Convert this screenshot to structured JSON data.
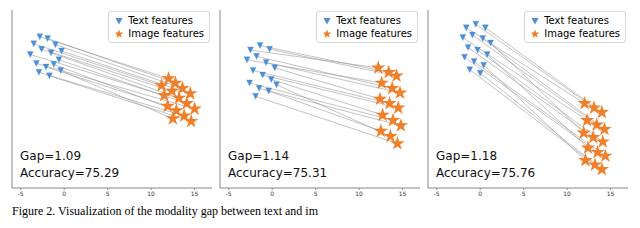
{
  "caption": "Figure 2. Visualization of the modality gap between text and im",
  "chart_data": [
    {
      "type": "scatter",
      "legend": "upper right",
      "annotations": [
        "Gap=1.09",
        "Accuracy=75.29"
      ],
      "xlim": [
        -6,
        17
      ],
      "xticks": [
        -5,
        0,
        5,
        10,
        15
      ],
      "ylim": [
        -10,
        10
      ],
      "tick_labels": "x",
      "series": [
        {
          "name": "Text features",
          "color": "#4a8fd6",
          "marker": "triangle_down",
          "x": [
            -3.5,
            -2.8,
            -1.9,
            -1.0,
            -0.3,
            -3.9,
            -2.6,
            -1.5,
            -0.6,
            -3.2,
            -2.1,
            -1.2,
            -2.9,
            -1.7,
            -0.4
          ],
          "values": [
            6.2,
            7.0,
            6.8,
            6.1,
            5.4,
            5.0,
            5.6,
            5.2,
            4.4,
            4.0,
            3.6,
            3.9,
            3.0,
            2.6,
            3.2
          ]
        },
        {
          "name": "Image features",
          "color": "#f07f2a",
          "marker": "star",
          "x": [
            11.2,
            12.0,
            12.8,
            13.6,
            14.5,
            11.5,
            12.4,
            13.2,
            14.1,
            15.0,
            11.9,
            12.9,
            13.8,
            14.6,
            12.5
          ],
          "values": [
            1.5,
            2.3,
            1.8,
            1.2,
            0.6,
            0.4,
            0.9,
            0.1,
            -0.5,
            -1.1,
            -0.8,
            -1.3,
            -1.9,
            -2.5,
            -2.2
          ]
        }
      ]
    },
    {
      "type": "scatter",
      "legend": "upper right",
      "annotations": [
        "Gap=1.14",
        "Accuracy=75.31"
      ],
      "xlim": [
        -6,
        17
      ],
      "xticks": [
        -5,
        0,
        5,
        10,
        15
      ],
      "ylim": [
        -10,
        10
      ],
      "tick_labels": "x",
      "series": [
        {
          "name": "Text features",
          "color": "#4a8fd6",
          "marker": "triangle_down",
          "x": [
            -2.5,
            -1.4,
            -0.3,
            -2.9,
            -1.8,
            -0.7,
            0.3,
            -2.2,
            -1.1,
            -0.1,
            -2.6,
            -1.5,
            -0.4,
            0.5,
            -1.9
          ],
          "values": [
            5.5,
            6.0,
            5.6,
            4.4,
            4.8,
            4.1,
            3.5,
            3.2,
            2.7,
            2.2,
            1.8,
            1.2,
            0.9,
            1.6,
            0.3
          ]
        },
        {
          "name": "Image features",
          "color": "#f07f2a",
          "marker": "star",
          "x": [
            12.2,
            13.4,
            14.3,
            12.6,
            13.8,
            14.7,
            12.4,
            13.5,
            14.5,
            12.7,
            13.9,
            14.8,
            12.5,
            13.6,
            14.4
          ],
          "values": [
            3.5,
            3.0,
            2.6,
            1.8,
            1.2,
            0.7,
            0.0,
            -0.5,
            -1.0,
            -1.8,
            -2.4,
            -3.0,
            -3.6,
            -4.2,
            -5.0
          ]
        }
      ]
    },
    {
      "type": "scatter",
      "legend": "upper right",
      "annotations": [
        "Gap=1.18",
        "Accuracy=75.76"
      ],
      "xlim": [
        -6,
        17
      ],
      "xticks": [
        -5,
        0,
        5,
        10,
        15
      ],
      "ylim": [
        -10,
        10
      ],
      "tick_labels": "x",
      "series": [
        {
          "name": "Text features",
          "color": "#4a8fd6",
          "marker": "triangle_down",
          "x": [
            -1.6,
            -0.5,
            0.6,
            -2.0,
            -0.9,
            0.3,
            1.2,
            -1.4,
            -0.3,
            0.8,
            -1.8,
            -0.7,
            0.4,
            -1.2,
            0.0
          ],
          "values": [
            8.0,
            8.4,
            8.0,
            6.9,
            7.2,
            6.8,
            6.3,
            5.8,
            5.5,
            5.0,
            4.7,
            4.2,
            3.8,
            3.3,
            2.9
          ]
        },
        {
          "name": "Image features",
          "color": "#f07f2a",
          "marker": "star",
          "x": [
            12.0,
            13.1,
            14.0,
            12.3,
            13.4,
            14.3,
            11.9,
            13.0,
            14.1,
            12.4,
            13.5,
            14.4,
            12.1,
            13.2,
            14.0
          ],
          "values": [
            -0.5,
            -1.0,
            -1.5,
            -2.4,
            -2.9,
            -3.4,
            -3.8,
            -4.3,
            -4.8,
            -5.5,
            -6.0,
            -6.4,
            -6.9,
            -7.4,
            -7.9
          ]
        }
      ]
    }
  ]
}
